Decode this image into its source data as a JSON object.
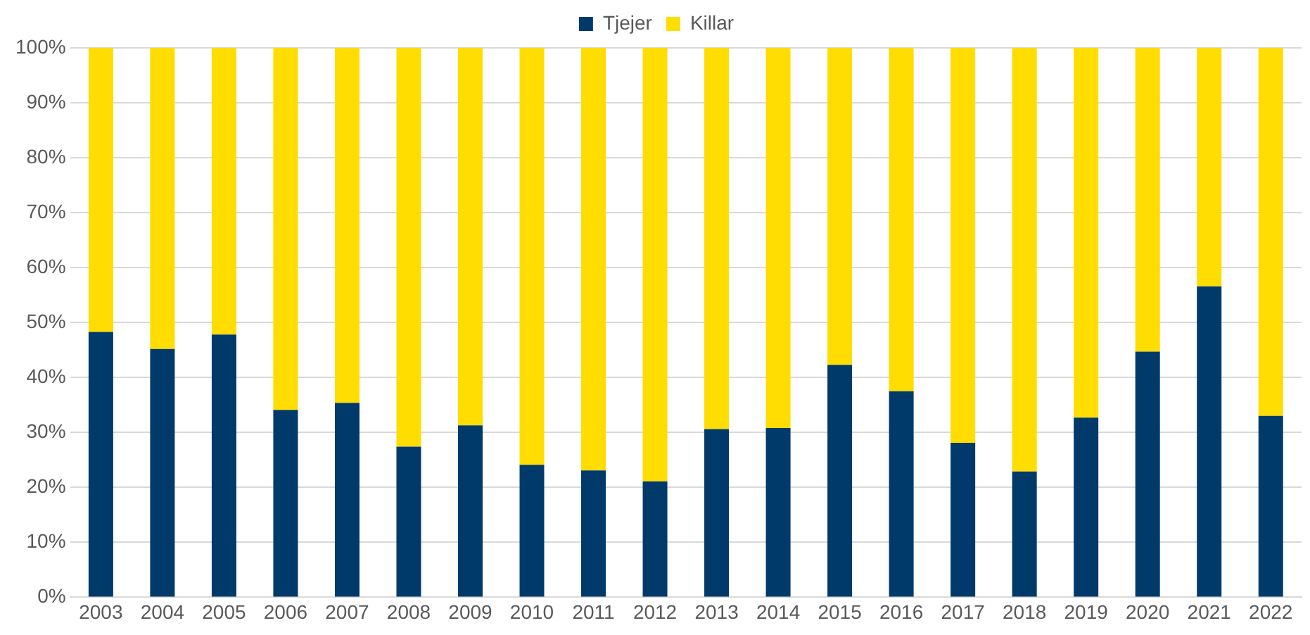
{
  "chart_data": {
    "type": "bar",
    "stacked": true,
    "legend": "top",
    "grid": "y",
    "categories": [
      "2003",
      "2004",
      "2005",
      "2006",
      "2007",
      "2008",
      "2009",
      "2010",
      "2011",
      "2012",
      "2013",
      "2014",
      "2015",
      "2016",
      "2017",
      "2018",
      "2019",
      "2020",
      "2021",
      "2022"
    ],
    "series": [
      {
        "name": "Tjejer",
        "color": "#003a6b",
        "values": [
          48.3,
          45.2,
          47.8,
          34.1,
          35.4,
          27.4,
          31.3,
          24.1,
          23.1,
          21.1,
          30.6,
          30.8,
          42.3,
          37.5,
          28.1,
          22.9,
          32.7,
          44.7,
          56.6,
          33.0
        ]
      },
      {
        "name": "Killar",
        "color": "#ffdd00",
        "values": [
          51.7,
          54.8,
          52.2,
          65.9,
          64.6,
          72.6,
          68.7,
          75.9,
          76.9,
          78.9,
          69.4,
          69.2,
          57.7,
          62.5,
          71.9,
          77.1,
          67.3,
          55.3,
          43.4,
          67.0
        ]
      }
    ],
    "ylim": [
      0,
      100
    ],
    "yticks": [
      {
        "value": 0,
        "label": "0%"
      },
      {
        "value": 10,
        "label": "10%"
      },
      {
        "value": 20,
        "label": "20%"
      },
      {
        "value": 30,
        "label": "30%"
      },
      {
        "value": 40,
        "label": "40%"
      },
      {
        "value": 50,
        "label": "50%"
      },
      {
        "value": 60,
        "label": "60%"
      },
      {
        "value": 70,
        "label": "70%"
      },
      {
        "value": 80,
        "label": "80%"
      },
      {
        "value": 90,
        "label": "90%"
      },
      {
        "value": 100,
        "label": "100%"
      }
    ]
  }
}
